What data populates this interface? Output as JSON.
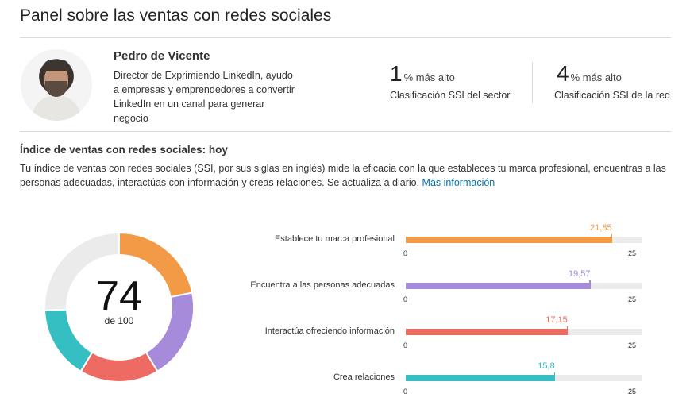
{
  "page": {
    "title": "Panel sobre las ventas con redes sociales"
  },
  "profile": {
    "name": "Pedro de Vicente",
    "headline": "Director de Exprimiendo LinkedIn, ayudo a empresas y emprendedores a convertir LinkedIn en un canal para generar negocio"
  },
  "stats": [
    {
      "value": "1",
      "suffix": "% más alto",
      "label": "Clasificación SSI del sector"
    },
    {
      "value": "4",
      "suffix": "% más alto",
      "label": "Clasificación SSI de la red"
    }
  ],
  "ssi": {
    "section_title": "Índice de ventas con redes sociales: hoy",
    "description": "Tu índice de ventas con redes sociales (SSI, por sus siglas en inglés) mide la eficacia con la que estableces tu marca profesional, encuentras a las personas adecuadas, interactúas con información y creas relaciones. Se actualiza a diario.",
    "more_link": "Más información",
    "score": "74",
    "score_of": "de 100"
  },
  "chart_data": {
    "type": "bar",
    "orientation": "horizontal",
    "xlim": [
      0,
      25
    ],
    "axis_min_label": "0",
    "axis_max_label": "25",
    "components": [
      {
        "label": "Establece tu marca profesional",
        "value": 21.85,
        "value_label": "21,85",
        "color": "#f39a47"
      },
      {
        "label": "Encuentra a las personas adecuadas",
        "value": 19.57,
        "value_label": "19,57",
        "color": "#a58bd9"
      },
      {
        "label": "Interactúa ofreciendo información",
        "value": 17.15,
        "value_label": "17,15",
        "color": "#ee6b63"
      },
      {
        "label": "Crea relaciones",
        "value": 15.8,
        "value_label": "15,8",
        "color": "#35bfc2"
      }
    ],
    "donut_remainder_color": "#ebebeb"
  }
}
